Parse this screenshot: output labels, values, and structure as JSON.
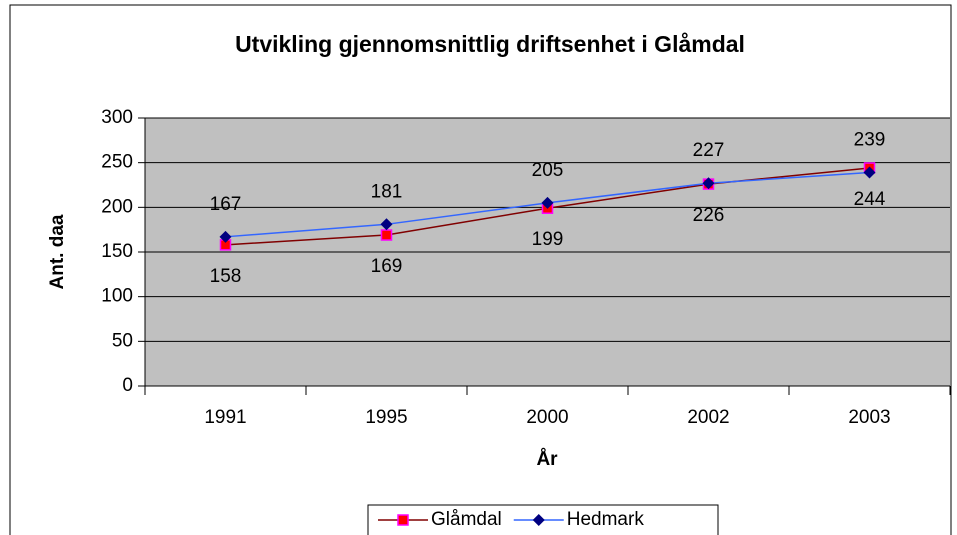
{
  "chart_data": {
    "type": "line",
    "title": "Utvikling gjennomsnittlig driftsenhet i Glåmdal",
    "x_label": "År",
    "y_label": "Ant. daa",
    "categories": [
      "1991",
      "1995",
      "2000",
      "2002",
      "2003"
    ],
    "series": [
      {
        "name": "Glåmdal",
        "color": "#800000",
        "marker_color": "#ff0000",
        "marker": "square",
        "label_side": "below",
        "values": [
          158,
          169,
          199,
          226,
          244
        ]
      },
      {
        "name": "Hedmark",
        "color": "#3366ff",
        "marker_color": "#000080",
        "marker": "diamond",
        "label_side": "above",
        "values": [
          167,
          181,
          205,
          227,
          239
        ]
      }
    ],
    "ylim": [
      0,
      300
    ],
    "yticks": [
      0,
      50,
      100,
      150,
      200,
      250,
      300
    ],
    "grid": true,
    "legend": "bottom",
    "plot_background": "#c0c0c0"
  }
}
